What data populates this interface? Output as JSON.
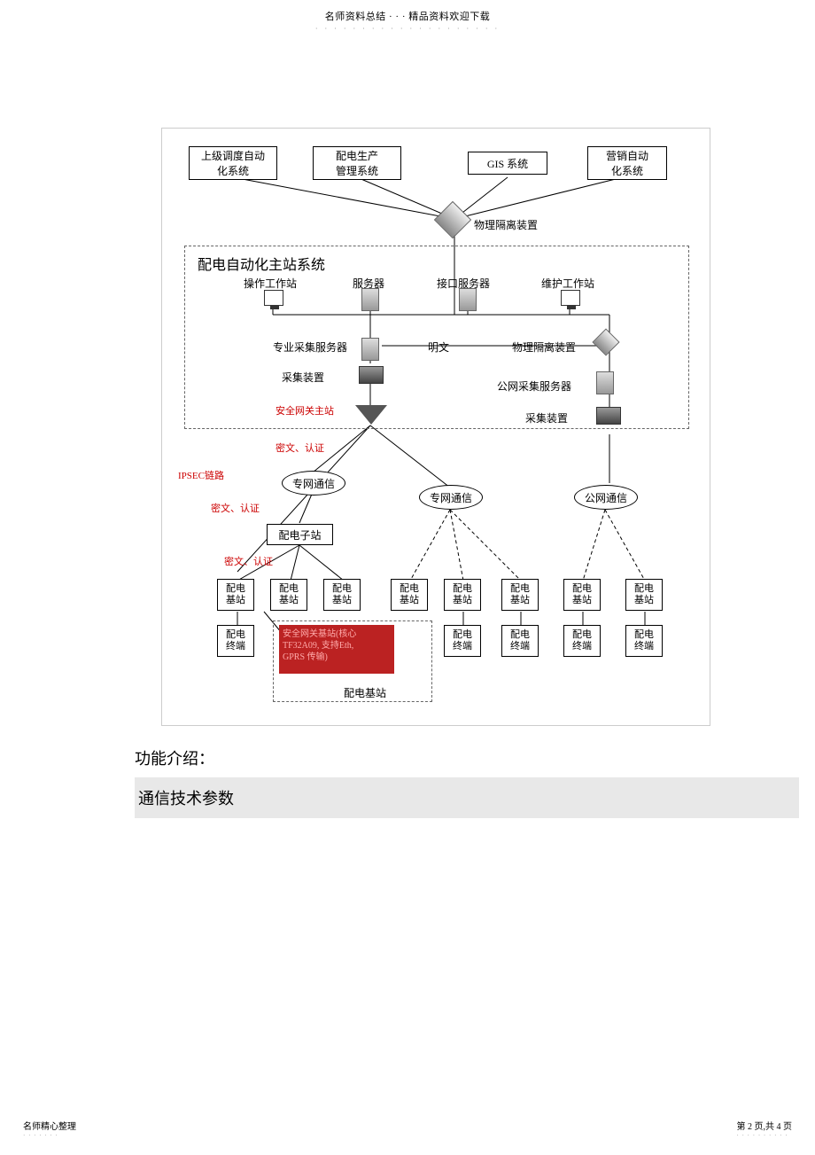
{
  "header": {
    "top_text": "名师资料总结 · · · 精品资料欢迎下载",
    "dots": "· · · · · · · · · · · · · · · · · · · ·"
  },
  "diagram": {
    "top_nodes": {
      "n1": "上级调度自动\n化系统",
      "n2": "配电生产\n管理系统",
      "n3": "GIS 系统",
      "n4": "营销自动\n化系统"
    },
    "physical_isolation": "物理隔离装置",
    "main_frame_title": "配电自动化主站系统",
    "row2": {
      "c1": "操作工作站",
      "c2": "服务器",
      "c3": "接口服务器",
      "c4": "维护工作站"
    },
    "row3": {
      "l1": "专业采集服务器",
      "l2": "明文",
      "l3": "物理隔离装置",
      "l4": "采集装置",
      "l5": "安全网关主站",
      "l6": "公网采集服务器",
      "l7": "采集装置"
    },
    "red_labels": {
      "r1": "密文、认证",
      "r2": "IPSEC链路",
      "r3": "密文、认证",
      "r4": "密文、认证"
    },
    "clouds": {
      "c1": "专网通信",
      "c2": "专网通信",
      "c3": "公网通信"
    },
    "substation": "配电子站",
    "base": "配电\n基站",
    "terminal": "配电\n终端",
    "red_box": "安全网关基站(核心\nTF32A09, 支持Eth,\nGPRS 传输)",
    "red_box_caption": "配电基站"
  },
  "sections": {
    "s1": "功能介绍：",
    "s2": "通信技术参数"
  },
  "footer": {
    "left": "名师精心整理",
    "right": "第 2 页,共 4 页"
  },
  "colors": {
    "frame_border": "#666666",
    "box_border": "#000000",
    "red_text": "#cc0000",
    "red_box_bg": "#bb2222",
    "band_bg": "#e8e8e8"
  }
}
